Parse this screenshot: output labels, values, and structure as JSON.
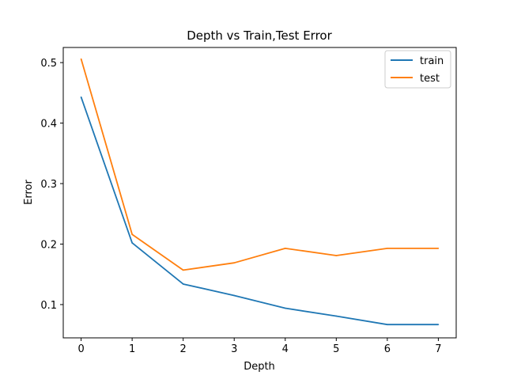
{
  "chart_data": {
    "type": "line",
    "title": "Depth vs Train,Test Error",
    "xlabel": "Depth",
    "ylabel": "Error",
    "x": [
      0,
      1,
      2,
      3,
      4,
      5,
      6,
      7
    ],
    "xlim": [
      -0.35,
      7.35
    ],
    "ylim": [
      0.045,
      0.525
    ],
    "xticks": [
      0,
      1,
      2,
      3,
      4,
      5,
      6,
      7
    ],
    "xtick_labels": [
      "0",
      "1",
      "2",
      "3",
      "4",
      "5",
      "6",
      "7"
    ],
    "yticks": [
      0.1,
      0.2,
      0.3,
      0.4,
      0.5
    ],
    "ytick_labels": [
      "0.1",
      "0.2",
      "0.3",
      "0.4",
      "0.5"
    ],
    "grid": false,
    "legend_position": "top-right",
    "series": [
      {
        "name": "train",
        "color": "#1f77b4",
        "values": [
          0.443,
          0.202,
          0.134,
          0.115,
          0.094,
          0.081,
          0.067,
          0.067
        ]
      },
      {
        "name": "test",
        "color": "#ff7f0e",
        "values": [
          0.506,
          0.216,
          0.157,
          0.169,
          0.193,
          0.181,
          0.193,
          0.193
        ]
      }
    ]
  }
}
